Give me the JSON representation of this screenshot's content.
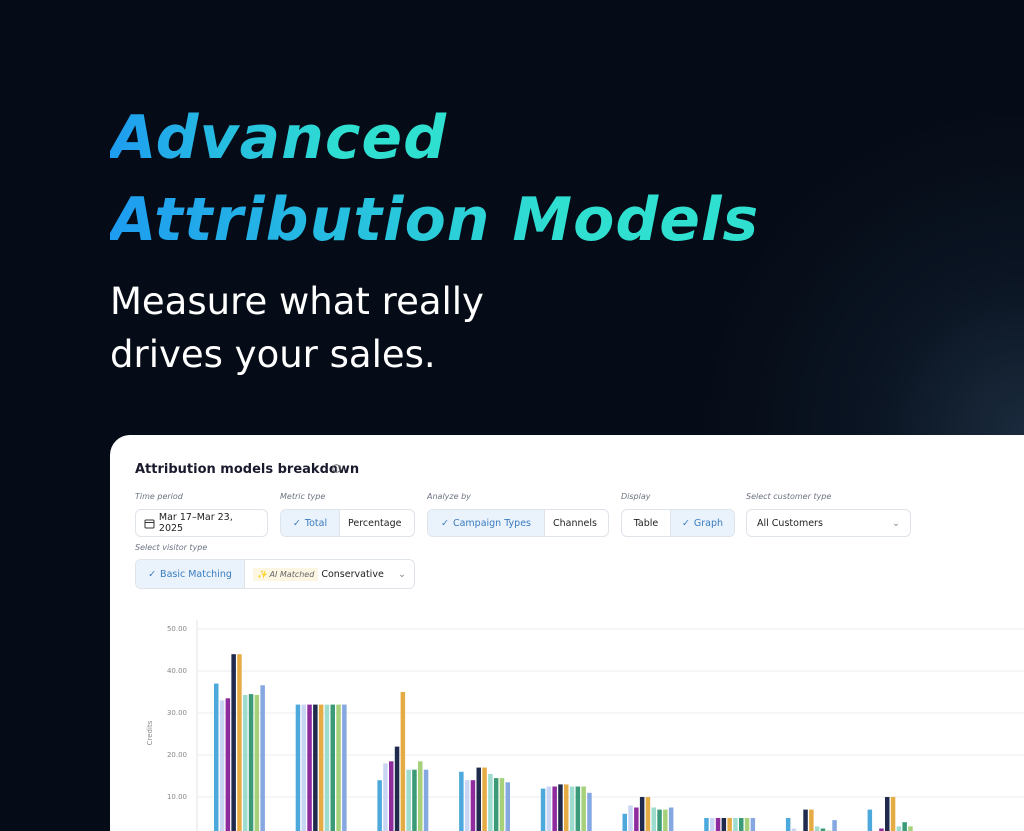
{
  "header": {
    "title_line1": "Advanced",
    "title_line2": "Attribution Models",
    "subtitle_line1": "Measure what really",
    "subtitle_line2": "drives your sales."
  },
  "panel": {
    "title": "Attribution models breakdown",
    "time_period": {
      "label": "Time period",
      "value": "Mar 17–Mar 23, 2025"
    },
    "metric_type": {
      "label": "Metric type",
      "options": [
        "Total",
        "Percentage"
      ]
    },
    "analyze_by": {
      "label": "Analyze by",
      "options": [
        "Campaign Types",
        "Channels"
      ]
    },
    "display": {
      "label": "Display",
      "options": [
        "Table",
        "Graph"
      ]
    },
    "customer_type": {
      "label": "Select customer type",
      "value": "All Customers"
    },
    "visitor_type": {
      "label": "Select visitor type",
      "options": [
        "Basic Matching"
      ],
      "ai_tag": "AI Matched",
      "ai_value": "Conservative"
    }
  },
  "chart_data": {
    "type": "bar",
    "y_label": "Credits",
    "categories": [
      null,
      null,
      null,
      null,
      null,
      null,
      null,
      null,
      null
    ],
    "series": [
      {
        "color": "#4da8dc",
        "values": [
          37,
          32,
          14,
          16,
          12,
          6,
          5,
          5,
          7
        ]
      },
      {
        "color": "#c9d6f3",
        "values": [
          33,
          32,
          18,
          14,
          12.5,
          8,
          5,
          2.5,
          1
        ]
      },
      {
        "color": "#8e2c9e",
        "values": [
          33.5,
          32,
          18.5,
          14,
          12.5,
          7.5,
          5,
          1.5,
          2.5
        ]
      },
      {
        "color": "#1f2a4d",
        "values": [
          44,
          32,
          22,
          17,
          13,
          10,
          5,
          7,
          10
        ]
      },
      {
        "color": "#e5ac45",
        "values": [
          44,
          32,
          35,
          17,
          13,
          10,
          5,
          7,
          10
        ]
      },
      {
        "color": "#9fdcd0",
        "values": [
          34.3,
          32,
          16.5,
          15.5,
          12.5,
          7.5,
          5,
          3,
          3
        ]
      },
      {
        "color": "#3b9a78",
        "values": [
          34.5,
          32,
          16.5,
          14.5,
          12.5,
          7,
          5,
          2.5,
          4
        ]
      },
      {
        "color": "#a6d17a",
        "values": [
          34.3,
          32,
          18.5,
          14.5,
          12.5,
          7,
          5,
          2,
          3
        ]
      },
      {
        "color": "#86a8e0",
        "values": [
          36.6,
          32,
          16.5,
          13.5,
          11,
          7.5,
          5,
          4.5,
          1.5
        ]
      }
    ],
    "ylim": [
      0,
      50
    ],
    "yticks": [
      {
        "value": 10,
        "label": "10.00"
      },
      {
        "value": 20,
        "label": "20.00"
      },
      {
        "value": 30,
        "label": "30.00"
      },
      {
        "value": 40,
        "label": "40.00"
      },
      {
        "value": 50,
        "label": "50.00"
      }
    ],
    "grid": true
  }
}
